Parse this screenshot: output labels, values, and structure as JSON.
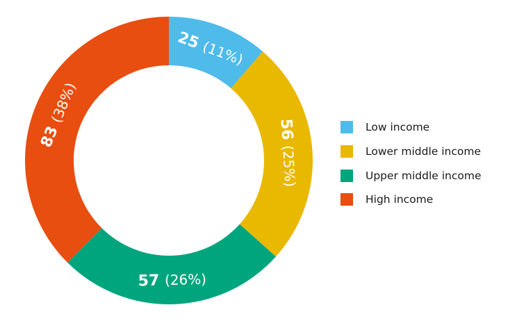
{
  "chart_data": {
    "type": "pie",
    "variant": "donut",
    "title": "",
    "categories": [
      "Low income",
      "Lower middle income",
      "Upper middle income",
      "High income"
    ],
    "values": [
      25,
      56,
      57,
      83
    ],
    "percent_labels": [
      "(11%)",
      "(25%)",
      "(26%)",
      "(38%)"
    ],
    "colors": [
      "#4ebbeb",
      "#e9b800",
      "#00a57e",
      "#e84e10"
    ],
    "legend_position": "right",
    "data_labels": "value and percent, inside slices"
  },
  "legend": {
    "items": [
      {
        "label": "Low income",
        "color": "#4ebbeb"
      },
      {
        "label": "Lower middle income",
        "color": "#e9b800"
      },
      {
        "label": "Upper middle income",
        "color": "#00a57e"
      },
      {
        "label": "High income",
        "color": "#e84e10"
      }
    ]
  }
}
